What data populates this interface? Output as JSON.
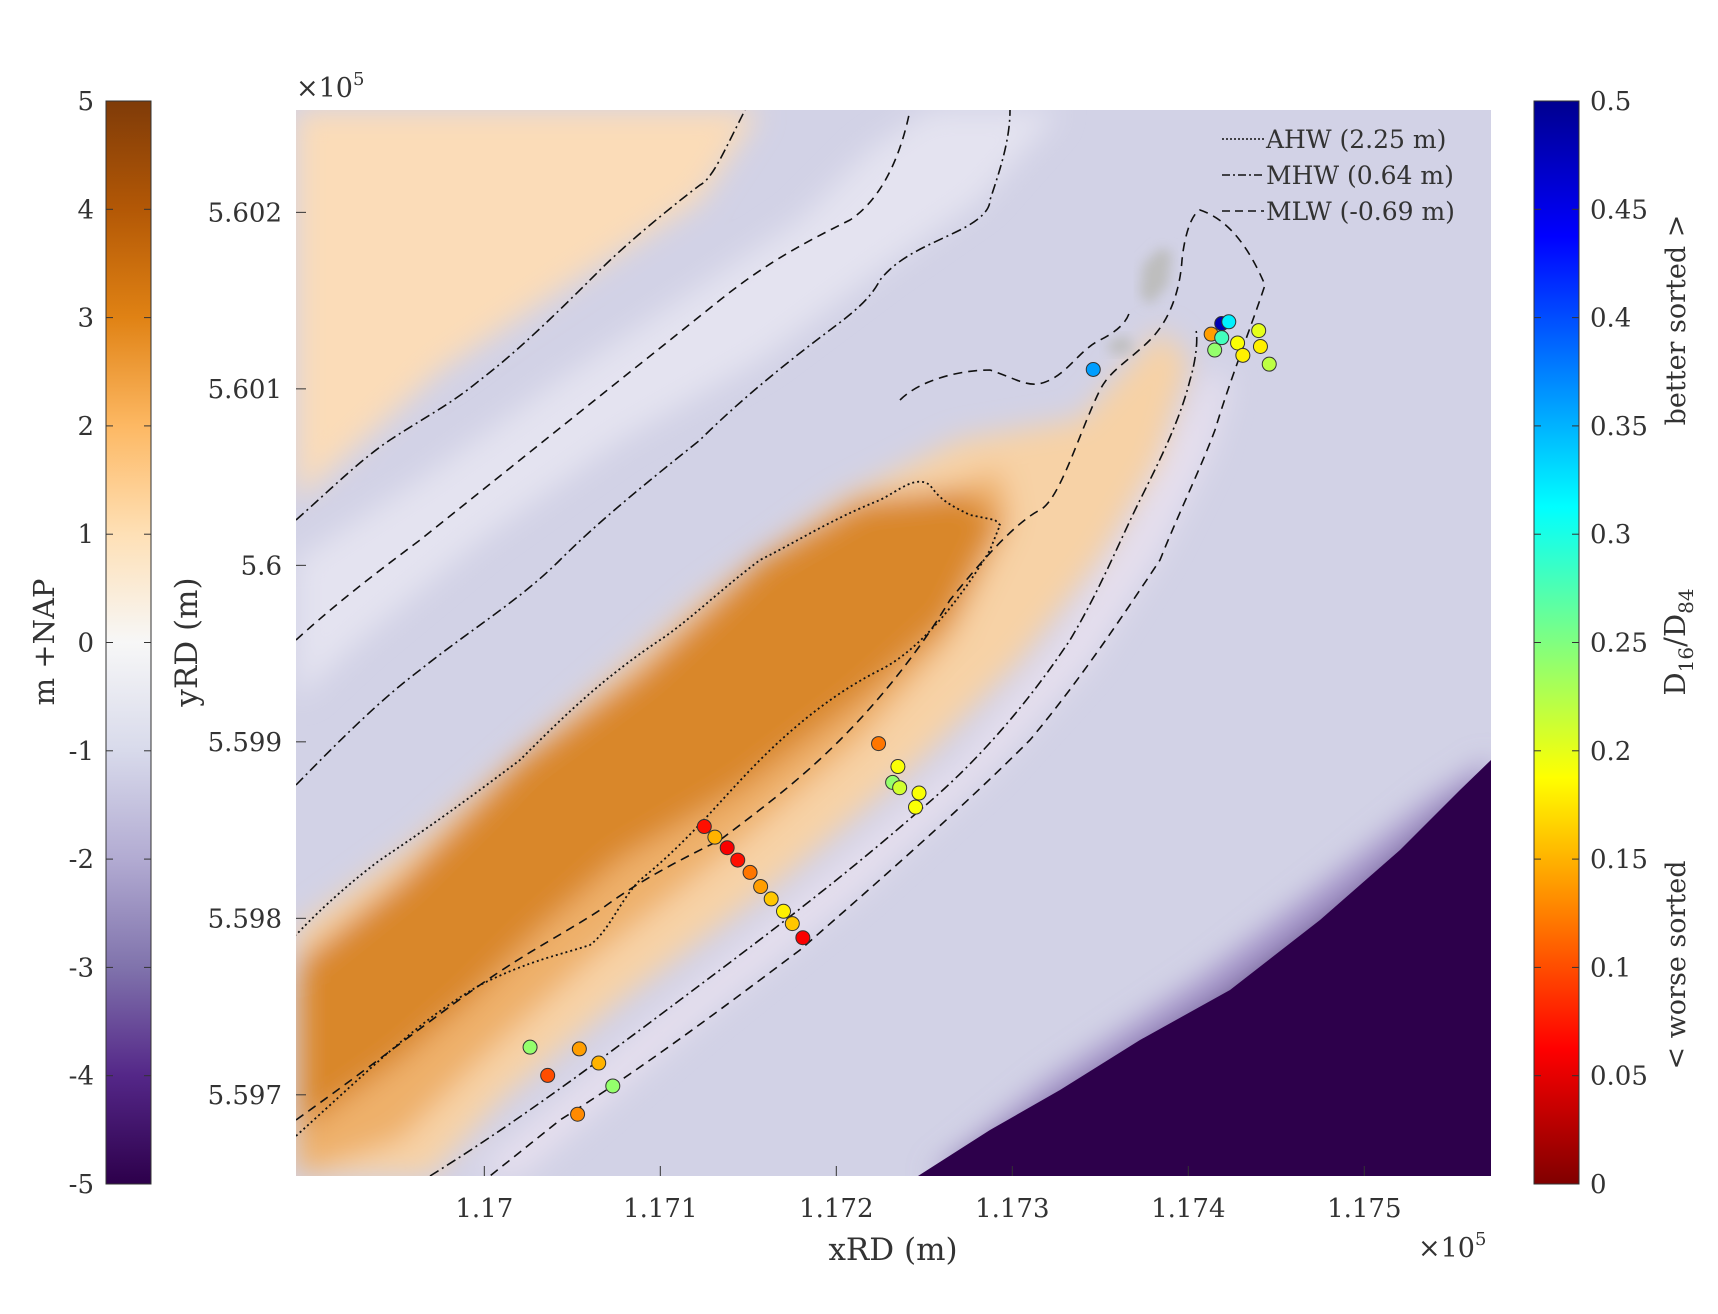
{
  "chart_data": {
    "type": "scatter",
    "title": "",
    "xlabel": "xRD (m)",
    "ylabel": "yRD (m)",
    "x_multiplier": "×10",
    "x_multiplier_exp": "5",
    "y_multiplier": "×10",
    "y_multiplier_exp": "5",
    "xlim": [
      1.16893,
      1.17572
    ],
    "ylim": [
      5.59654,
      5.60258
    ],
    "x_ticks": [
      1.17,
      1.171,
      1.172,
      1.173,
      1.174,
      1.175
    ],
    "x_tick_labels": [
      "1.17",
      "1.171",
      "1.172",
      "1.173",
      "1.174",
      "1.175"
    ],
    "y_ticks": [
      5.597,
      5.598,
      5.599,
      5.6,
      5.601,
      5.602
    ],
    "y_tick_labels": [
      "5.597",
      "5.598",
      "5.599",
      "5.6",
      "5.601",
      "5.602"
    ],
    "grid": false,
    "legend_position": "top-right",
    "legend": [
      {
        "label": "AHW (2.25 m)",
        "style": "dotted"
      },
      {
        "label": "MHW (0.64 m)",
        "style": "dashdot"
      },
      {
        "label": "MLW (-0.69 m)",
        "style": "dashed"
      }
    ],
    "left_colorbar": {
      "label": "m +NAP",
      "range": [
        -5,
        5
      ],
      "tick_labels": [
        "5",
        "4",
        "3",
        "2",
        "1",
        "0",
        "-1",
        "-2",
        "-3",
        "-4",
        "-5"
      ],
      "colors": [
        "#2d004b",
        "#542788",
        "#8073ac",
        "#b2abd2",
        "#d8daeb",
        "#f7f7f7",
        "#fee0b6",
        "#fdb863",
        "#e08214",
        "#b35806",
        "#7f3b08"
      ]
    },
    "right_colorbar": {
      "label_main": "D",
      "label_sub1": "16",
      "label_sep": "/D",
      "label_sub2": "84",
      "label_upper": "better sorted >",
      "label_lower": "< worse sorted",
      "range": [
        0,
        0.5
      ],
      "tick_labels": [
        "0.5",
        "0.45",
        "0.4",
        "0.35",
        "0.3",
        "0.25",
        "0.2",
        "0.15",
        "0.1",
        "0.05",
        "0"
      ],
      "colors": [
        "#800000",
        "#ff0000",
        "#ff8000",
        "#ffff00",
        "#80ff80",
        "#00ffff",
        "#0080ff",
        "#0000ff",
        "#00008f"
      ]
    },
    "sample_points": [
      {
        "x": 1.17125,
        "y": 5.59852,
        "value": 0.07
      },
      {
        "x": 1.17131,
        "y": 5.59846,
        "value": 0.15
      },
      {
        "x": 1.17138,
        "y": 5.5984,
        "value": 0.06
      },
      {
        "x": 1.17144,
        "y": 5.59833,
        "value": 0.07
      },
      {
        "x": 1.17151,
        "y": 5.59826,
        "value": 0.12
      },
      {
        "x": 1.17157,
        "y": 5.59818,
        "value": 0.14
      },
      {
        "x": 1.17163,
        "y": 5.59811,
        "value": 0.16
      },
      {
        "x": 1.1717,
        "y": 5.59804,
        "value": 0.18
      },
      {
        "x": 1.17175,
        "y": 5.59797,
        "value": 0.16
      },
      {
        "x": 1.17181,
        "y": 5.59789,
        "value": 0.06
      },
      {
        "x": 1.17224,
        "y": 5.59899,
        "value": 0.12
      },
      {
        "x": 1.17235,
        "y": 5.59886,
        "value": 0.19
      },
      {
        "x": 1.17232,
        "y": 5.59877,
        "value": 0.24
      },
      {
        "x": 1.17236,
        "y": 5.59874,
        "value": 0.21
      },
      {
        "x": 1.17247,
        "y": 5.59871,
        "value": 0.19
      },
      {
        "x": 1.17245,
        "y": 5.59863,
        "value": 0.19
      },
      {
        "x": 1.17026,
        "y": 5.59727,
        "value": 0.24
      },
      {
        "x": 1.17036,
        "y": 5.59711,
        "value": 0.1
      },
      {
        "x": 1.17054,
        "y": 5.59726,
        "value": 0.14
      },
      {
        "x": 1.17065,
        "y": 5.59718,
        "value": 0.15
      },
      {
        "x": 1.17073,
        "y": 5.59705,
        "value": 0.24
      },
      {
        "x": 1.17053,
        "y": 5.59689,
        "value": 0.13
      },
      {
        "x": 1.17346,
        "y": 5.60111,
        "value": 0.36
      },
      {
        "x": 1.17413,
        "y": 5.60131,
        "value": 0.14
      },
      {
        "x": 1.17419,
        "y": 5.60137,
        "value": 0.48
      },
      {
        "x": 1.17423,
        "y": 5.60138,
        "value": 0.32
      },
      {
        "x": 1.17419,
        "y": 5.60129,
        "value": 0.28
      },
      {
        "x": 1.17415,
        "y": 5.60122,
        "value": 0.24
      },
      {
        "x": 1.17428,
        "y": 5.60126,
        "value": 0.19
      },
      {
        "x": 1.17431,
        "y": 5.60119,
        "value": 0.18
      },
      {
        "x": 1.1744,
        "y": 5.60133,
        "value": 0.2
      },
      {
        "x": 1.17441,
        "y": 5.60124,
        "value": 0.18
      },
      {
        "x": 1.17446,
        "y": 5.60114,
        "value": 0.22
      }
    ]
  }
}
